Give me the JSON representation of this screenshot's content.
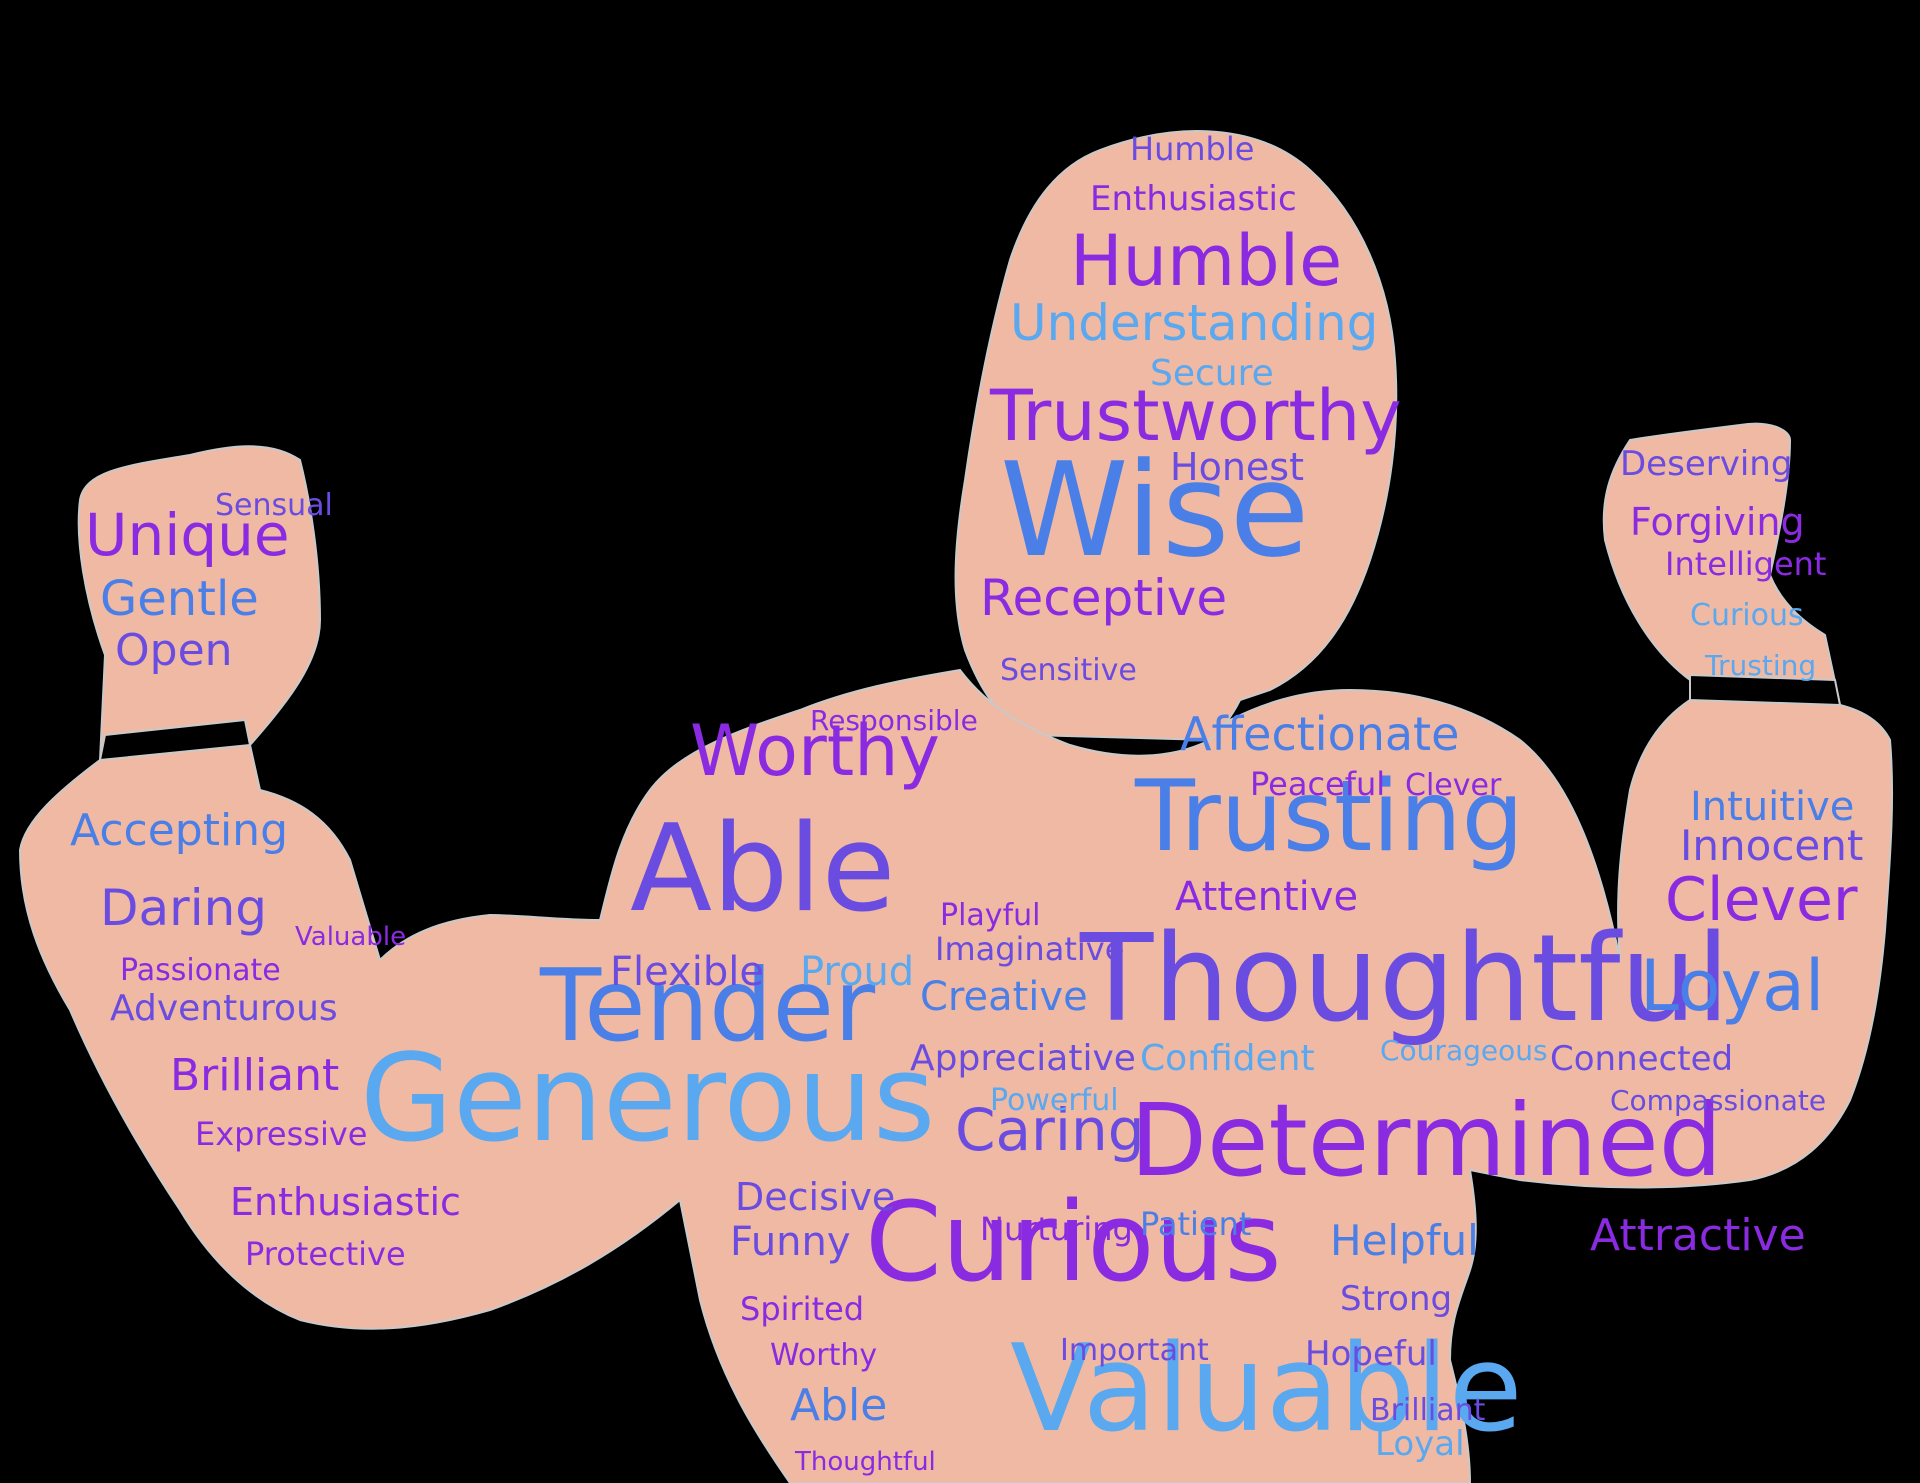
{
  "colors": {
    "background": "#000000",
    "silhouette": "#f0b9a4",
    "outline": "#c9c9c9",
    "purple": "#8a2be2",
    "violet": "#6a4de0",
    "blue": "#4a7fe8",
    "light_blue": "#5aa8ef"
  },
  "words": [
    {
      "text": "Humble",
      "c": "violet"
    },
    {
      "text": "Enthusiastic",
      "c": "purple"
    },
    {
      "text": "Humble",
      "c": "purple"
    },
    {
      "text": "Understanding",
      "c": "light_blue"
    },
    {
      "text": "Secure",
      "c": "light_blue"
    },
    {
      "text": "Trustworthy",
      "c": "purple"
    },
    {
      "text": "Honest",
      "c": "violet"
    },
    {
      "text": "Wise",
      "c": "blue"
    },
    {
      "text": "Receptive",
      "c": "purple"
    },
    {
      "text": "Sensitive",
      "c": "violet"
    },
    {
      "text": "Unique",
      "c": "purple"
    },
    {
      "text": "Sensual",
      "c": "violet"
    },
    {
      "text": "Gentle",
      "c": "blue"
    },
    {
      "text": "Open",
      "c": "violet"
    },
    {
      "text": "Accepting",
      "c": "blue"
    },
    {
      "text": "Daring",
      "c": "violet"
    },
    {
      "text": "Adventurous",
      "c": "violet"
    },
    {
      "text": "Brilliant",
      "c": "purple"
    },
    {
      "text": "Expressive",
      "c": "purple"
    },
    {
      "text": "Enthusiastic",
      "c": "purple"
    },
    {
      "text": "Protective",
      "c": "purple"
    },
    {
      "text": "Worthy",
      "c": "purple"
    },
    {
      "text": "Able",
      "c": "violet"
    },
    {
      "text": "Tender",
      "c": "blue"
    },
    {
      "text": "Generous",
      "c": "light_blue"
    },
    {
      "text": "Flexible",
      "c": "violet"
    },
    {
      "text": "Proud",
      "c": "light_blue"
    },
    {
      "text": "Affectionate",
      "c": "blue"
    },
    {
      "text": "Trusting",
      "c": "blue"
    },
    {
      "text": "Attentive",
      "c": "purple"
    },
    {
      "text": "Thoughtful",
      "c": "violet"
    },
    {
      "text": "Creative",
      "c": "blue"
    },
    {
      "text": "Appreciative",
      "c": "violet"
    },
    {
      "text": "Confident",
      "c": "light_blue"
    },
    {
      "text": "Determined",
      "c": "purple"
    },
    {
      "text": "Curious",
      "c": "purple"
    },
    {
      "text": "Valuable",
      "c": "light_blue"
    },
    {
      "text": "Decisive",
      "c": "violet"
    },
    {
      "text": "Funny",
      "c": "violet"
    },
    {
      "text": "Spirited",
      "c": "purple"
    },
    {
      "text": "Caring",
      "c": "violet"
    },
    {
      "text": "Helpful",
      "c": "blue"
    },
    {
      "text": "Strong",
      "c": "violet"
    },
    {
      "text": "Hopeful",
      "c": "violet"
    },
    {
      "text": "Important",
      "c": "violet"
    },
    {
      "text": "Deserving",
      "c": "violet"
    },
    {
      "text": "Forgiving",
      "c": "purple"
    },
    {
      "text": "Intelligent",
      "c": "purple"
    },
    {
      "text": "Curious",
      "c": "light_blue"
    },
    {
      "text": "Trusting",
      "c": "light_blue"
    },
    {
      "text": "Intuitive",
      "c": "blue"
    },
    {
      "text": "Innocent",
      "c": "violet"
    },
    {
      "text": "Clever",
      "c": "purple"
    },
    {
      "text": "Loyal",
      "c": "blue"
    },
    {
      "text": "Connected",
      "c": "violet"
    },
    {
      "text": "Courageous",
      "c": "light_blue"
    },
    {
      "text": "Compassionate",
      "c": "violet"
    },
    {
      "text": "Attractive",
      "c": "purple"
    },
    {
      "text": "Powerful",
      "c": "light_blue"
    },
    {
      "text": "Imaginative",
      "c": "violet"
    },
    {
      "text": "Playful",
      "c": "purple"
    },
    {
      "text": "Clever",
      "c": "purple"
    },
    {
      "text": "Peaceful",
      "c": "purple"
    },
    {
      "text": "Nurturing",
      "c": "purple"
    },
    {
      "text": "Patient",
      "c": "blue"
    },
    {
      "text": "Able",
      "c": "blue"
    },
    {
      "text": "Thoughtful",
      "c": "purple"
    },
    {
      "text": "Loyal",
      "c": "light_blue"
    },
    {
      "text": "Brilliant",
      "c": "violet"
    },
    {
      "text": "Responsible",
      "c": "purple"
    },
    {
      "text": "Worthy",
      "c": "purple"
    },
    {
      "text": "Valuable",
      "c": "purple"
    },
    {
      "text": "Passionate",
      "c": "purple"
    }
  ]
}
